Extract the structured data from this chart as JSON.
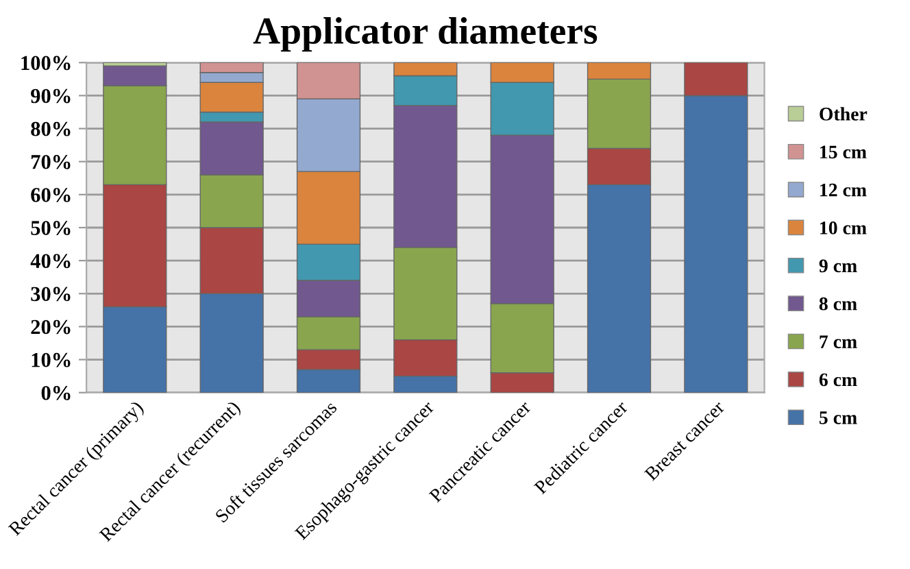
{
  "chart_data": {
    "type": "bar",
    "title": "Applicator diameters",
    "stacked": true,
    "categories": [
      "Rectal cancer (primary)",
      "Rectal cancer (recurrent)",
      "Soft tissues sarcomas",
      "Esophago-gastric cancer",
      "Pancreatic cancer",
      "Pediatric cancer",
      "Breast cancer"
    ],
    "series": [
      {
        "name": "5 cm",
        "color": "#4572a7",
        "values": [
          26,
          30,
          7,
          5,
          0,
          63,
          90
        ]
      },
      {
        "name": "6 cm",
        "color": "#aa4643",
        "values": [
          37,
          20,
          6,
          11,
          6,
          11,
          10
        ]
      },
      {
        "name": "7 cm",
        "color": "#89a54e",
        "values": [
          30,
          16,
          10,
          28,
          21,
          21,
          0
        ]
      },
      {
        "name": "8 cm",
        "color": "#71588f",
        "values": [
          6,
          16,
          11,
          43,
          51,
          0,
          0
        ]
      },
      {
        "name": "9 cm",
        "color": "#4198af",
        "values": [
          0,
          3,
          11,
          9,
          16,
          0,
          0
        ]
      },
      {
        "name": "10 cm",
        "color": "#db843d",
        "values": [
          0,
          9,
          22,
          4,
          6,
          5,
          0
        ]
      },
      {
        "name": "12 cm",
        "color": "#93a9cf",
        "values": [
          0,
          3,
          22,
          0,
          0,
          0,
          0
        ]
      },
      {
        "name": "15 cm",
        "color": "#d19392",
        "values": [
          0,
          3,
          11,
          0,
          0,
          0,
          0
        ]
      },
      {
        "name": "Other",
        "color": "#b9cd96",
        "values": [
          1,
          0,
          0,
          0,
          0,
          0,
          0
        ]
      }
    ],
    "ylim": [
      0,
      100
    ],
    "yticks": [
      {
        "value": 0,
        "label": "0%"
      },
      {
        "value": 10,
        "label": "10%"
      },
      {
        "value": 20,
        "label": "20%"
      },
      {
        "value": 30,
        "label": "30%"
      },
      {
        "value": 40,
        "label": "40%"
      },
      {
        "value": 50,
        "label": "50%"
      },
      {
        "value": 60,
        "label": "60%"
      },
      {
        "value": 70,
        "label": "70%"
      },
      {
        "value": 80,
        "label": "80%"
      },
      {
        "value": 90,
        "label": "90%"
      },
      {
        "value": 100,
        "label": "100%"
      }
    ],
    "grid": "y",
    "legend": "right"
  }
}
